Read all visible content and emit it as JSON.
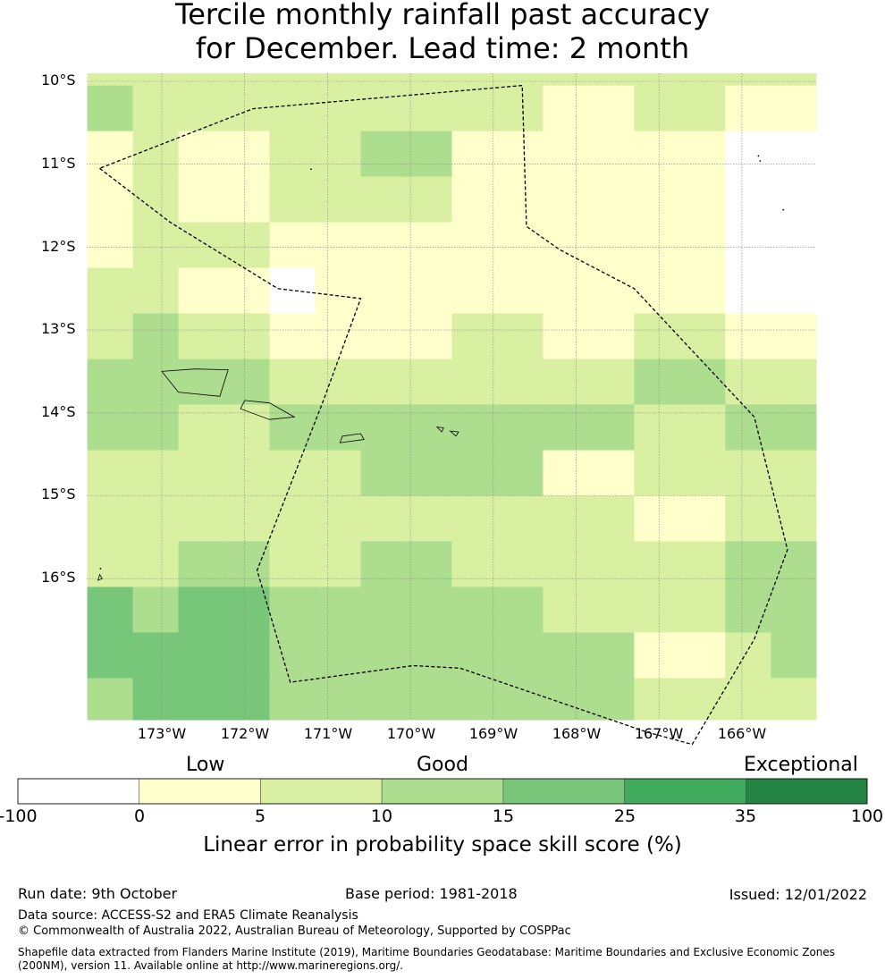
{
  "title": {
    "line1": "Tercile monthly rainfall past accuracy",
    "line2": "for December. Lead time: 2 month"
  },
  "map": {
    "lat_labels": [
      "10°S",
      "11°S",
      "12°S",
      "13°S",
      "14°S",
      "15°S",
      "16°S"
    ],
    "lon_labels": [
      "173°W",
      "172°W",
      "171°W",
      "170°W",
      "169°W",
      "168°W",
      "167°W",
      "166°W"
    ],
    "grid_categories": [
      [
        2,
        2,
        2,
        2,
        2,
        2,
        2,
        2,
        2,
        2,
        2,
        2,
        2,
        2,
        2,
        2
      ],
      [
        3,
        2,
        2,
        2,
        2,
        2,
        2,
        2,
        2,
        2,
        1,
        1,
        2,
        2,
        1,
        1
      ],
      [
        1,
        2,
        1,
        1,
        2,
        2,
        3,
        3,
        1,
        1,
        1,
        1,
        1,
        1,
        0,
        0
      ],
      [
        1,
        2,
        1,
        1,
        2,
        2,
        2,
        2,
        1,
        1,
        1,
        1,
        1,
        1,
        0,
        0
      ],
      [
        1,
        2,
        2,
        2,
        1,
        1,
        1,
        1,
        1,
        1,
        1,
        1,
        1,
        1,
        0,
        0
      ],
      [
        2,
        2,
        1,
        1,
        0,
        1,
        1,
        1,
        1,
        1,
        1,
        1,
        1,
        1,
        0,
        0
      ],
      [
        2,
        3,
        2,
        2,
        1,
        1,
        1,
        1,
        2,
        2,
        1,
        1,
        2,
        2,
        1,
        1
      ],
      [
        3,
        3,
        3,
        3,
        2,
        2,
        2,
        2,
        2,
        2,
        2,
        2,
        3,
        3,
        2,
        2
      ],
      [
        3,
        3,
        2,
        2,
        3,
        3,
        3,
        3,
        3,
        3,
        3,
        3,
        2,
        2,
        3,
        3
      ],
      [
        2,
        2,
        2,
        2,
        2,
        2,
        3,
        3,
        3,
        3,
        1,
        1,
        2,
        2,
        2,
        2
      ],
      [
        2,
        2,
        2,
        2,
        2,
        2,
        2,
        2,
        2,
        2,
        2,
        2,
        1,
        1,
        2,
        2
      ],
      [
        2,
        2,
        3,
        3,
        2,
        2,
        3,
        3,
        2,
        2,
        2,
        2,
        2,
        2,
        3,
        3
      ],
      [
        4,
        3,
        4,
        4,
        3,
        3,
        3,
        3,
        3,
        3,
        2,
        2,
        2,
        2,
        3,
        3
      ],
      [
        4,
        4,
        4,
        4,
        3,
        3,
        3,
        3,
        3,
        3,
        3,
        3,
        1,
        1,
        2,
        3
      ],
      [
        3,
        4,
        4,
        4,
        3,
        3,
        3,
        3,
        3,
        3,
        3,
        3,
        2,
        2,
        2,
        2
      ]
    ],
    "row_bounds_lat": [
      -9.9,
      -10.05,
      -10.6,
      -11.15,
      -11.7,
      -12.25,
      -12.8,
      -13.35,
      -13.9,
      -14.45,
      -15.0,
      -15.55,
      -16.1,
      -16.65,
      -17.2,
      -17.75
    ],
    "col_bounds_lon": [
      -173.9,
      -173.35,
      -172.8,
      -172.25,
      -171.7,
      -171.15,
      -170.6,
      -170.05,
      -169.5,
      -168.95,
      -168.4,
      -167.85,
      -167.3,
      -166.75,
      -166.2,
      -165.65,
      -165.1
    ],
    "eez_boundary_lonlat": [
      [
        -173.75,
        -11.05
      ],
      [
        -172.9,
        -11.7
      ],
      [
        -171.6,
        -12.5
      ],
      [
        -170.6,
        -12.62
      ],
      [
        -171.05,
        -13.85
      ],
      [
        -171.85,
        -15.9
      ],
      [
        -171.45,
        -17.25
      ],
      [
        -169.97,
        -17.05
      ],
      [
        -169.4,
        -17.08
      ],
      [
        -167.15,
        -17.85
      ],
      [
        -166.6,
        -18.0
      ],
      [
        -165.85,
        -16.73
      ],
      [
        -165.45,
        -15.65
      ],
      [
        -165.85,
        -14.05
      ],
      [
        -167.3,
        -12.5
      ],
      [
        -168.2,
        -12.03
      ],
      [
        -168.6,
        -11.75
      ],
      [
        -168.65,
        -10.05
      ],
      [
        -171.9,
        -10.33
      ],
      [
        -173.75,
        -11.05
      ]
    ],
    "islands_lonlat": [
      [
        [
          -173.0,
          -13.5
        ],
        [
          -172.6,
          -13.47
        ],
        [
          -172.2,
          -13.48
        ],
        [
          -172.3,
          -13.8
        ],
        [
          -172.8,
          -13.75
        ],
        [
          -173.0,
          -13.5
        ]
      ],
      [
        [
          -172.0,
          -13.85
        ],
        [
          -171.7,
          -13.88
        ],
        [
          -171.4,
          -14.05
        ],
        [
          -171.7,
          -14.08
        ],
        [
          -172.05,
          -13.95
        ],
        [
          -172.0,
          -13.85
        ]
      ],
      [
        [
          -170.82,
          -14.28
        ],
        [
          -170.6,
          -14.25
        ],
        [
          -170.56,
          -14.32
        ],
        [
          -170.85,
          -14.36
        ],
        [
          -170.82,
          -14.28
        ]
      ],
      [
        [
          -169.68,
          -14.17
        ],
        [
          -169.6,
          -14.18
        ],
        [
          -169.62,
          -14.23
        ],
        [
          -169.68,
          -14.17
        ]
      ],
      [
        [
          -169.52,
          -14.22
        ],
        [
          -169.42,
          -14.23
        ],
        [
          -169.45,
          -14.28
        ],
        [
          -169.52,
          -14.22
        ]
      ],
      [
        [
          -173.75,
          -15.95
        ],
        [
          -173.72,
          -16.0
        ],
        [
          -173.77,
          -16.02
        ],
        [
          -173.75,
          -15.95
        ]
      ]
    ],
    "dots_lonlat": [
      [
        -171.2,
        -11.06
      ],
      [
        -165.8,
        -10.9
      ],
      [
        -165.78,
        -10.96
      ],
      [
        -165.5,
        -11.55
      ],
      [
        -173.74,
        -15.88
      ]
    ]
  },
  "colorbar": {
    "category_labels": [
      "Low",
      "Good",
      "Exceptional"
    ],
    "tick_labels": [
      "-100",
      "0",
      "5",
      "10",
      "15",
      "25",
      "35",
      "100"
    ],
    "colors": [
      "#ffffff",
      "#ffffcc",
      "#d9f0a3",
      "#addd8e",
      "#78c679",
      "#41ab5d",
      "#238443"
    ],
    "xlabel": "Linear error in probability space skill score (%)"
  },
  "footer": {
    "run_date": "Run date: 9th October",
    "base_period": "Base period: 1981-2018",
    "issued": "Issued: 12/01/2022",
    "data_source": "Data source: ACCESS-S2 and ERA5 Climate Reanalysis",
    "copyright": "© Commonwealth of Australia 2022, Australian Bureau of Meteorology, Supported by COSPPac",
    "shapefile_line1": "Shapefile data extracted from Flanders Marine Institute (2019), Maritime Boundaries Geodatabase: Maritime Boundaries and Exclusive Economic Zones",
    "shapefile_line2": "(200NM), version 11. Available online at http://www.marineregions.org/."
  }
}
